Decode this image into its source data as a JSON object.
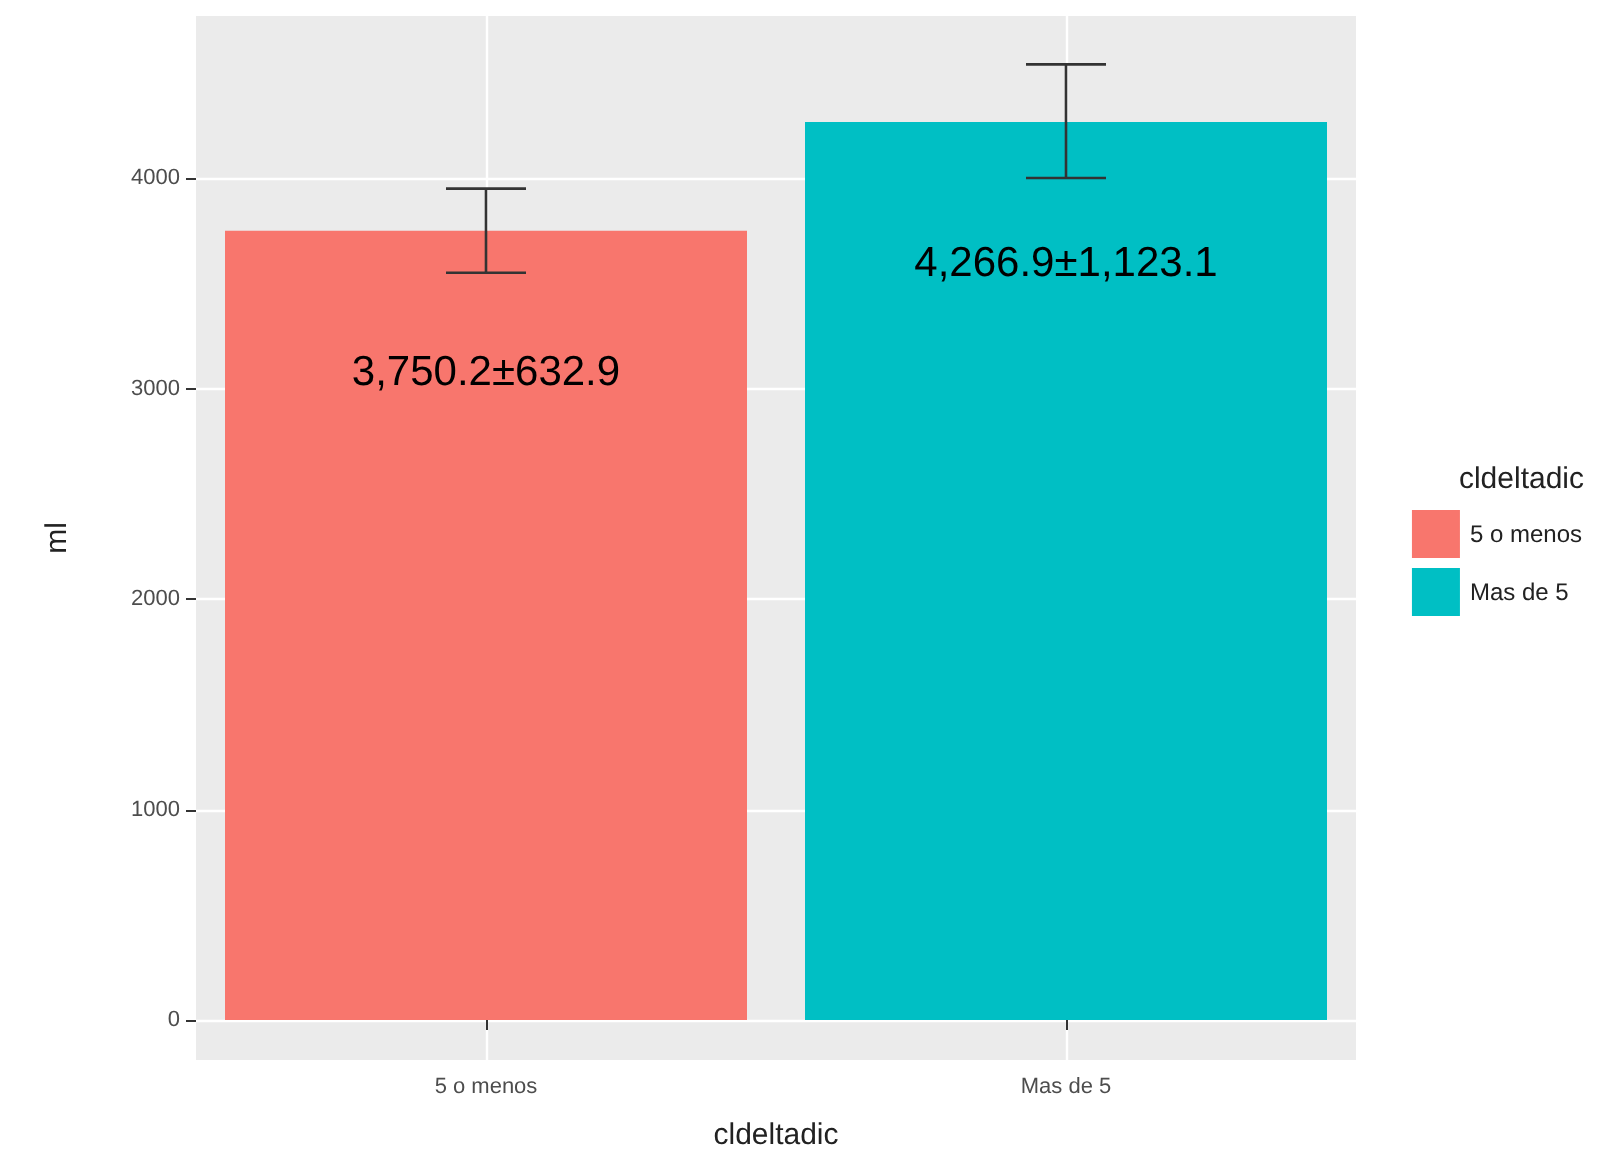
{
  "chart_data": {
    "type": "bar",
    "xlabel": "cldeltadic",
    "ylabel": "ml",
    "legend_title": "cldeltadic",
    "categories": [
      "5 o menos",
      "Mas de 5"
    ],
    "stacked": true,
    "series": [
      {
        "name": "5 o menos",
        "color": "#f8766d",
        "values": [
          3750.2,
          null
        ],
        "errors": [
          [
            3550,
            3950
          ],
          null
        ],
        "value_labels": [
          "3,750.2±632.9",
          null
        ]
      },
      {
        "name": "Mas de 5",
        "color": "#00bfc4",
        "values": [
          null,
          4266.9
        ],
        "errors": [
          null,
          [
            4000,
            4540
          ]
        ],
        "value_labels": [
          null,
          "4,266.9±1,123.1"
        ]
      }
    ],
    "ylim": [
      -190,
      4770
    ],
    "yticks": [
      0,
      1000,
      2000,
      3000,
      4000
    ],
    "grid": true,
    "legend": "right"
  }
}
